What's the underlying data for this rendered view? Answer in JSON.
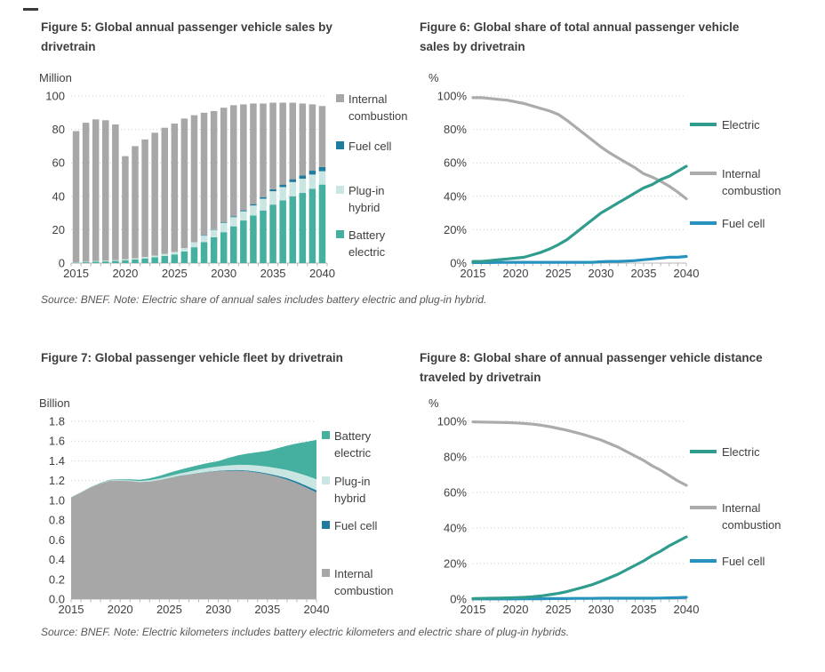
{
  "page": {
    "background": "#ffffff"
  },
  "notes": {
    "row1": "Source: BNEF. Note: Electric share of annual sales includes battery electric and plug-in hybrid.",
    "row2": "Source: BNEF. Note: Electric kilometers includes battery electric kilometers and electric share of plug-in hybrids."
  },
  "colors": {
    "battery_electric": "#45AFA0",
    "plug_in_hybrid": "#C9E6E2",
    "fuel_cell_square": "#1F7C9E",
    "fuel_cell_line": "#2792BD",
    "internal_combustion": "#A7A7A7",
    "electric_line": "#2F9C8E",
    "internal_combustion_line": "#ABABAB",
    "grid": "#CCCCCC",
    "axis": "#B7B7B7",
    "text": "#3F3F3F"
  },
  "chart_data": [
    {
      "id": "fig5",
      "type": "bar",
      "stacked": true,
      "title": "Figure 5: Global annual passenger vehicle sales by\ndrivetrain",
      "unit": "Million",
      "ylabel": "Million",
      "xlabel": "",
      "ylim": [
        0,
        100
      ],
      "grid": "dotted-horizontal",
      "legend_position": "right",
      "years": [
        2015,
        2016,
        2017,
        2018,
        2019,
        2020,
        2021,
        2022,
        2023,
        2024,
        2025,
        2026,
        2027,
        2028,
        2029,
        2030,
        2031,
        2032,
        2033,
        2034,
        2035,
        2036,
        2037,
        2038,
        2039,
        2040
      ],
      "xtick_labels": [
        "2015",
        "2020",
        "2025",
        "2030",
        "2035",
        "2040"
      ],
      "ytick_labels": [
        "100",
        "80",
        "60",
        "40",
        "20",
        "0"
      ],
      "series": [
        {
          "name": "Battery electric",
          "color": "#45AFA0",
          "values": [
            0.3,
            0.5,
            0.8,
            1.0,
            1.3,
            1.7,
            2.2,
            2.8,
            3.5,
            4.3,
            5.2,
            7.0,
            9.5,
            12.5,
            15.5,
            18.5,
            22,
            25.5,
            28.5,
            31.5,
            35,
            37.5,
            40,
            42,
            44.5,
            47
          ]
        },
        {
          "name": "Plug-in hybrid",
          "color": "#C9E6E2",
          "values": [
            0.2,
            0.3,
            0.4,
            0.5,
            0.5,
            0.6,
            0.7,
            0.9,
            1.0,
            1.2,
            1.5,
            2.0,
            3.0,
            4.0,
            4.5,
            5.5,
            5.5,
            5.5,
            6.0,
            7.0,
            8.0,
            8.0,
            8.5,
            8.5,
            8.5,
            8.0
          ]
        },
        {
          "name": "Fuel cell",
          "color": "#1F7C9E",
          "values": [
            0,
            0,
            0,
            0,
            0,
            0,
            0,
            0,
            0,
            0,
            0,
            0,
            0,
            0.2,
            0.3,
            0.4,
            0.5,
            0.6,
            0.8,
            1.0,
            1.2,
            1.5,
            1.7,
            2.0,
            2.3,
            2.5
          ]
        },
        {
          "name": "Internal combustion",
          "color": "#A7A7A7",
          "values": [
            78.5,
            83.2,
            84.8,
            84.0,
            81.2,
            61.7,
            67.1,
            70.3,
            73.5,
            75.5,
            76.8,
            77.5,
            76.0,
            73.3,
            70.7,
            68.6,
            66.5,
            63.4,
            60.2,
            56.0,
            51.8,
            49.0,
            45.8,
            43.0,
            39.7,
            36.5
          ]
        }
      ],
      "legend": [
        {
          "label": "Internal\ncombustion",
          "color": "#A7A7A7",
          "swatch": "square"
        },
        {
          "label": "Fuel cell",
          "color": "#1F7C9E",
          "swatch": "square"
        },
        {
          "label": "Plug-in\nhybrid",
          "color": "#C9E6E2",
          "swatch": "square"
        },
        {
          "label": "Battery\nelectric",
          "color": "#45AFA0",
          "swatch": "square"
        }
      ]
    },
    {
      "id": "fig6",
      "type": "line",
      "title": "Figure 6: Global share of total annual passenger vehicle\nsales by drivetrain",
      "unit": "%",
      "ylabel": "%",
      "xlabel": "",
      "ylim": [
        0,
        100
      ],
      "grid": "dotted-horizontal",
      "legend_position": "right",
      "years": [
        2015,
        2016,
        2017,
        2018,
        2019,
        2020,
        2021,
        2022,
        2023,
        2024,
        2025,
        2026,
        2027,
        2028,
        2029,
        2030,
        2031,
        2032,
        2033,
        2034,
        2035,
        2036,
        2037,
        2038,
        2039,
        2040
      ],
      "xtick_labels": [
        "2015",
        "2020",
        "2025",
        "2030",
        "2035",
        "2040"
      ],
      "ytick_labels": [
        "100%",
        "80%",
        "60%",
        "40%",
        "20%",
        "0%"
      ],
      "series": [
        {
          "name": "Internal combustion",
          "color": "#ABABAB",
          "values": [
            99,
            99,
            98.5,
            98,
            97.5,
            96.5,
            95.5,
            94,
            92.5,
            91,
            89,
            85.5,
            81.5,
            77.5,
            73.5,
            69.5,
            66,
            63,
            60,
            57,
            53.5,
            51.5,
            49,
            46,
            42.5,
            38.5
          ]
        },
        {
          "name": "Fuel cell",
          "color": "#2792BD",
          "values": [
            0.3,
            0.3,
            0.3,
            0.4,
            0.4,
            0.5,
            0.5,
            0.5,
            0.5,
            0.5,
            0.5,
            0.5,
            0.5,
            0.5,
            0.5,
            0.8,
            1,
            1,
            1.2,
            1.5,
            2,
            2.5,
            3,
            3.5,
            3.5,
            4
          ]
        },
        {
          "name": "Electric",
          "color": "#2F9C8E",
          "values": [
            1,
            1,
            1.5,
            2,
            2.5,
            3,
            3.5,
            5,
            6.5,
            8.5,
            11,
            14,
            18,
            22,
            26,
            30,
            33,
            36,
            39,
            42,
            45,
            47,
            50,
            52,
            55,
            58
          ]
        }
      ],
      "legend": [
        {
          "label": "Electric",
          "color": "#2F9C8E",
          "swatch": "line"
        },
        {
          "label": "Internal\ncombustion",
          "color": "#ABABAB",
          "swatch": "line"
        },
        {
          "label": "Fuel cell",
          "color": "#2792BD",
          "swatch": "line"
        }
      ]
    },
    {
      "id": "fig7",
      "type": "area",
      "stacked": true,
      "title": "Figure 7: Global passenger vehicle fleet by drivetrain",
      "unit": "Billion",
      "ylabel": "Billion",
      "xlabel": "",
      "ylim": [
        0,
        1.8
      ],
      "grid": "dotted-horizontal",
      "legend_position": "right",
      "years": [
        2015,
        2016,
        2017,
        2018,
        2019,
        2020,
        2021,
        2022,
        2023,
        2024,
        2025,
        2026,
        2027,
        2028,
        2029,
        2030,
        2031,
        2032,
        2033,
        2034,
        2035,
        2036,
        2037,
        2038,
        2039,
        2040
      ],
      "xtick_labels": [
        "2015",
        "2020",
        "2025",
        "2030",
        "2035",
        "2040"
      ],
      "ytick_labels": [
        "1.8",
        "1.6",
        "1.4",
        "1.2",
        "1.0",
        "0.8",
        "0.6",
        "0.4",
        "0.2",
        "0.0"
      ],
      "series": [
        {
          "name": "Internal combustion",
          "color": "#A7A7A7",
          "values": [
            1.03,
            1.08,
            1.13,
            1.17,
            1.2,
            1.2,
            1.195,
            1.185,
            1.19,
            1.205,
            1.225,
            1.245,
            1.26,
            1.275,
            1.287,
            1.295,
            1.3,
            1.3,
            1.293,
            1.28,
            1.262,
            1.238,
            1.21,
            1.172,
            1.128,
            1.08
          ]
        },
        {
          "name": "Fuel cell",
          "color": "#1F7C9E",
          "values": [
            0,
            0,
            0,
            0,
            0,
            0,
            0,
            0,
            0.001,
            0.001,
            0.002,
            0.002,
            0.003,
            0.003,
            0.004,
            0.005,
            0.006,
            0.007,
            0.008,
            0.009,
            0.011,
            0.013,
            0.015,
            0.017,
            0.019,
            0.022
          ]
        },
        {
          "name": "Plug-in hybrid",
          "color": "#C9E6E2",
          "values": [
            0.001,
            0.001,
            0.002,
            0.003,
            0.004,
            0.005,
            0.007,
            0.009,
            0.012,
            0.015,
            0.019,
            0.023,
            0.028,
            0.033,
            0.038,
            0.043,
            0.048,
            0.053,
            0.058,
            0.063,
            0.068,
            0.075,
            0.083,
            0.092,
            0.101,
            0.11
          ]
        },
        {
          "name": "Battery electric",
          "color": "#45AFA0",
          "values": [
            0.001,
            0.002,
            0.003,
            0.004,
            0.006,
            0.008,
            0.011,
            0.015,
            0.02,
            0.026,
            0.033,
            0.038,
            0.042,
            0.046,
            0.05,
            0.055,
            0.075,
            0.095,
            0.115,
            0.135,
            0.16,
            0.2,
            0.245,
            0.295,
            0.345,
            0.4
          ]
        }
      ],
      "legend": [
        {
          "label": "Battery\nelectric",
          "color": "#45AFA0",
          "swatch": "square"
        },
        {
          "label": "Plug-in\nhybrid",
          "color": "#C9E6E2",
          "swatch": "square"
        },
        {
          "label": "Fuel cell",
          "color": "#1F7C9E",
          "swatch": "square"
        },
        {
          "label": "Internal\ncombustion",
          "color": "#A7A7A7",
          "swatch": "square"
        }
      ]
    },
    {
      "id": "fig8",
      "type": "line",
      "title": "Figure 8: Global share of annual passenger vehicle distance\ntraveled by drivetrain",
      "unit": "%",
      "ylabel": "%",
      "xlabel": "",
      "ylim": [
        0,
        100
      ],
      "grid": "dotted-horizontal",
      "legend_position": "right",
      "years": [
        2015,
        2016,
        2017,
        2018,
        2019,
        2020,
        2021,
        2022,
        2023,
        2024,
        2025,
        2026,
        2027,
        2028,
        2029,
        2030,
        2031,
        2032,
        2033,
        2034,
        2035,
        2036,
        2037,
        2038,
        2039,
        2040
      ],
      "xtick_labels": [
        "2015",
        "2020",
        "2025",
        "2030",
        "2035",
        "2040"
      ],
      "ytick_labels": [
        "100%",
        "80%",
        "60%",
        "40%",
        "20%",
        "0%"
      ],
      "series": [
        {
          "name": "Internal combustion",
          "color": "#ABABAB",
          "values": [
            99.7,
            99.6,
            99.5,
            99.4,
            99.3,
            99.1,
            98.8,
            98.4,
            97.8,
            97,
            96,
            95,
            93.8,
            92.5,
            91,
            89.5,
            87.5,
            85.5,
            83,
            80.5,
            78,
            75,
            72.5,
            69.5,
            66.5,
            64
          ]
        },
        {
          "name": "Fuel cell",
          "color": "#2792BD",
          "values": [
            0.1,
            0.1,
            0.1,
            0.1,
            0.1,
            0.1,
            0.2,
            0.2,
            0.2,
            0.3,
            0.3,
            0.3,
            0.4,
            0.4,
            0.4,
            0.5,
            0.5,
            0.5,
            0.5,
            0.5,
            0.5,
            0.5,
            0.6,
            0.7,
            0.8,
            1.0
          ]
        },
        {
          "name": "Electric",
          "color": "#2F9C8E",
          "values": [
            0.3,
            0.4,
            0.5,
            0.6,
            0.7,
            0.8,
            1.0,
            1.3,
            1.8,
            2.5,
            3.2,
            4.2,
            5.5,
            6.8,
            8.2,
            10,
            12,
            14,
            16.5,
            19,
            21.5,
            24.5,
            27,
            30,
            32.5,
            35
          ]
        }
      ],
      "legend": [
        {
          "label": "Electric",
          "color": "#2F9C8E",
          "swatch": "line"
        },
        {
          "label": "Internal\ncombustion",
          "color": "#ABABAB",
          "swatch": "line"
        },
        {
          "label": "Fuel cell",
          "color": "#2792BD",
          "swatch": "line"
        }
      ]
    }
  ]
}
